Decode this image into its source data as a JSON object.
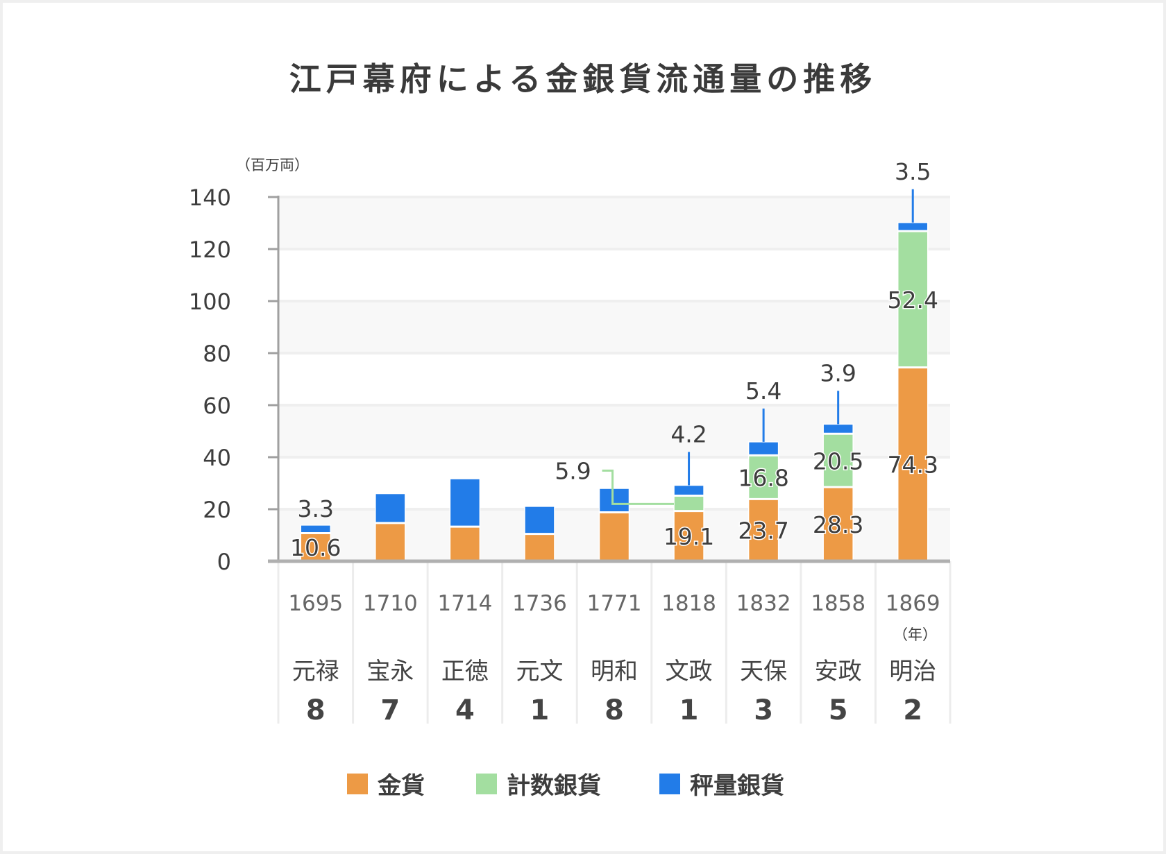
{
  "title": "江戸幕府による金銀貨流通量の推移",
  "chart_data": {
    "type": "bar",
    "stacked": true,
    "title": "江戸幕府による金銀貨流通量の推移",
    "ylabel": "（百万両）",
    "xlabel": "（年）",
    "ylim": [
      0,
      140
    ],
    "yticks": [
      0,
      20,
      40,
      60,
      80,
      100,
      120,
      140
    ],
    "grid": true,
    "legend_position": "bottom",
    "categories": [
      "1695",
      "1710",
      "1714",
      "1736",
      "1771",
      "1818",
      "1832",
      "1858",
      "1869"
    ],
    "eras": [
      {
        "name": "元禄",
        "year": "8"
      },
      {
        "name": "宝永",
        "year": "7"
      },
      {
        "name": "正徳",
        "year": "4"
      },
      {
        "name": "元文",
        "year": "1"
      },
      {
        "name": "明和",
        "year": "8"
      },
      {
        "name": "文政",
        "year": "1"
      },
      {
        "name": "天保",
        "year": "3"
      },
      {
        "name": "安政",
        "year": "5"
      },
      {
        "name": "明治",
        "year": "2"
      }
    ],
    "series": [
      {
        "name": "金貨",
        "color": "#ED9A45",
        "values": [
          10.6,
          14.5,
          13.1,
          10.3,
          18.6,
          19.1,
          23.7,
          28.3,
          74.3
        ],
        "labels": [
          "10.6",
          null,
          null,
          null,
          null,
          "19.1",
          "23.7",
          "28.3",
          "74.3"
        ]
      },
      {
        "name": "計数銀貨",
        "color": "#A3DEA0",
        "values": [
          0,
          0,
          0,
          0,
          0,
          5.9,
          16.8,
          20.5,
          52.4
        ],
        "labels": [
          null,
          null,
          null,
          null,
          null,
          "5.9",
          "16.8",
          "20.5",
          "52.4"
        ]
      },
      {
        "name": "秤量銀貨",
        "color": "#227CE8",
        "values": [
          3.3,
          11.5,
          18.6,
          10.8,
          9.4,
          4.2,
          5.4,
          3.9,
          3.5
        ],
        "labels": [
          "3.3",
          null,
          null,
          null,
          null,
          "4.2",
          "5.4",
          "3.9",
          "3.5"
        ]
      }
    ]
  }
}
